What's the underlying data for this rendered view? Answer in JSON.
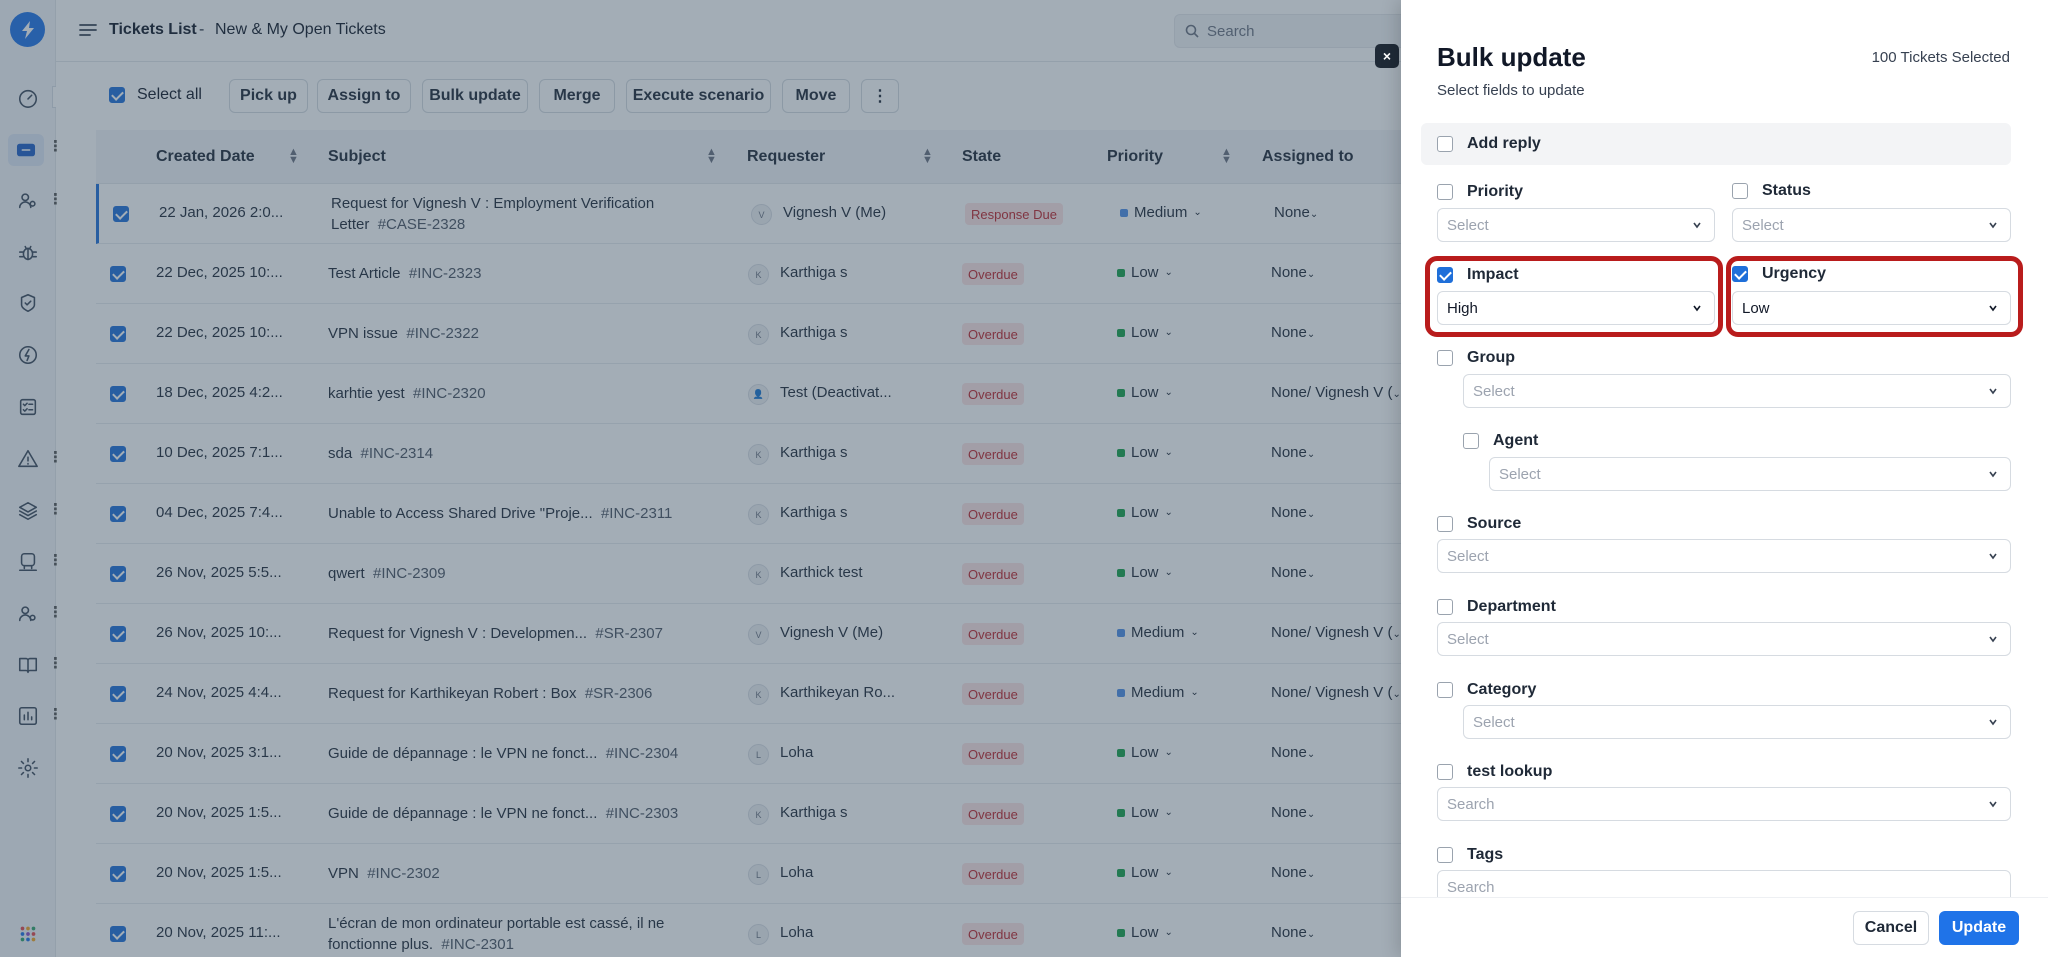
{
  "header": {
    "title": "Tickets List",
    "separator": "-",
    "view": "New & My Open Tickets",
    "search_placeholder": "Search"
  },
  "toolbar": {
    "select_all": "Select all",
    "actions": [
      "Pick up",
      "Assign to",
      "Bulk update",
      "Merge",
      "Execute scenario",
      "Move"
    ],
    "more": "⋮"
  },
  "columns": [
    "Created Date",
    "Subject",
    "Requester",
    "State",
    "Priority",
    "Assigned to"
  ],
  "rows": [
    {
      "date": "22 Jan, 2026 2:0...",
      "subject": "Request for Vignesh V : Employment Verification",
      "subject2": "Letter",
      "id": "#CASE-2328",
      "avatar": "V",
      "requester": "Vignesh V (Me)",
      "state": "Response Due",
      "priority": "Medium",
      "assigned": "None"
    },
    {
      "date": "22 Dec, 2025 10:...",
      "subject": "Test Article",
      "id": "#INC-2323",
      "avatar": "K",
      "requester": "Karthiga s",
      "state": "Overdue",
      "priority": "Low",
      "assigned": "None"
    },
    {
      "date": "22 Dec, 2025 10:...",
      "subject": "VPN issue",
      "id": "#INC-2322",
      "avatar": "K",
      "requester": "Karthiga s",
      "state": "Overdue",
      "priority": "Low",
      "assigned": "None"
    },
    {
      "date": "18 Dec, 2025 4:2...",
      "subject": "karhtie yest",
      "id": "#INC-2320",
      "avatar": "👤",
      "requester": "Test (Deactivat...",
      "state": "Overdue",
      "priority": "Low",
      "assigned": "None/ Vignesh V ("
    },
    {
      "date": "10 Dec, 2025 7:1...",
      "subject": "sda",
      "id": "#INC-2314",
      "avatar": "K",
      "requester": "Karthiga s",
      "state": "Overdue",
      "priority": "Low",
      "assigned": "None"
    },
    {
      "date": "04 Dec, 2025 7:4...",
      "subject": "Unable to Access Shared Drive \"Proje...",
      "id": "#INC-2311",
      "avatar": "K",
      "requester": "Karthiga s",
      "state": "Overdue",
      "priority": "Low",
      "assigned": "None"
    },
    {
      "date": "26 Nov, 2025 5:5...",
      "subject": "qwert",
      "id": "#INC-2309",
      "avatar": "K",
      "requester": "Karthick test",
      "state": "Overdue",
      "priority": "Low",
      "assigned": "None"
    },
    {
      "date": "26 Nov, 2025 10:...",
      "subject": "Request for Vignesh V : Developmen...",
      "id": "#SR-2307",
      "avatar": "V",
      "requester": "Vignesh V (Me)",
      "state": "Overdue",
      "priority": "Medium",
      "assigned": "None/ Vignesh V ("
    },
    {
      "date": "24 Nov, 2025 4:4...",
      "subject": "Request for Karthikeyan Robert : Box",
      "id": "#SR-2306",
      "avatar": "K",
      "requester": "Karthikeyan Ro...",
      "state": "Overdue",
      "priority": "Medium",
      "assigned": "None/ Vignesh V ("
    },
    {
      "date": "20 Nov, 2025 3:1...",
      "subject": "Guide de dépannage : le VPN ne fonct...",
      "id": "#INC-2304",
      "avatar": "L",
      "requester": "Loha",
      "state": "Overdue",
      "priority": "Low",
      "assigned": "None"
    },
    {
      "date": "20 Nov, 2025 1:5...",
      "subject": "Guide de dépannage : le VPN ne fonct...",
      "id": "#INC-2303",
      "avatar": "K",
      "requester": "Karthiga s",
      "state": "Overdue",
      "priority": "Low",
      "assigned": "None"
    },
    {
      "date": "20 Nov, 2025 1:5...",
      "subject": "VPN",
      "id": "#INC-2302",
      "avatar": "L",
      "requester": "Loha",
      "state": "Overdue",
      "priority": "Low",
      "assigned": "None"
    },
    {
      "date": "20 Nov, 2025 11:...",
      "subject": "L'écran de mon ordinateur portable est cassé, il ne",
      "subject2": "fonctionne plus.",
      "id": "#INC-2301",
      "avatar": "L",
      "requester": "Loha",
      "state": "Overdue",
      "priority": "Low",
      "assigned": "None"
    }
  ],
  "drawer": {
    "title": "Bulk update",
    "subtitle": "Select fields to update",
    "count": "100 Tickets Selected",
    "add_reply": "Add reply",
    "fields": {
      "priority": {
        "label": "Priority",
        "value": "Select"
      },
      "status": {
        "label": "Status",
        "value": "Select"
      },
      "impact": {
        "label": "Impact",
        "value": "High"
      },
      "urgency": {
        "label": "Urgency",
        "value": "Low"
      },
      "group": {
        "label": "Group",
        "value": "Select"
      },
      "agent": {
        "label": "Agent",
        "value": "Select"
      },
      "source": {
        "label": "Source",
        "value": "Select"
      },
      "department": {
        "label": "Department",
        "value": "Select"
      },
      "category": {
        "label": "Category",
        "value": "Select"
      },
      "test_lookup": {
        "label": "test lookup",
        "value": "Search"
      },
      "tags": {
        "label": "Tags",
        "value": "Search"
      }
    },
    "cancel": "Cancel",
    "update": "Update",
    "close": "×"
  },
  "colors": {
    "accent": "#1f73e8",
    "overdue_bg": "#fde4e4",
    "overdue_text": "#c0262d",
    "priority_low": "#16a34a",
    "priority_medium": "#4f8ee8",
    "highlight": "#b91c1c",
    "overlay": "rgba(52,73,94,0.45)"
  },
  "icons": [
    "logo-bolt-icon",
    "dashboard-icon",
    "tickets-icon",
    "contacts-icon",
    "bug-icon",
    "tasks-icon",
    "changes-icon",
    "checklist-icon",
    "problems-icon",
    "layers-icon",
    "assets-icon",
    "users-icon",
    "knowledge-icon",
    "reports-icon",
    "settings-icon",
    "apps-grid-icon"
  ]
}
